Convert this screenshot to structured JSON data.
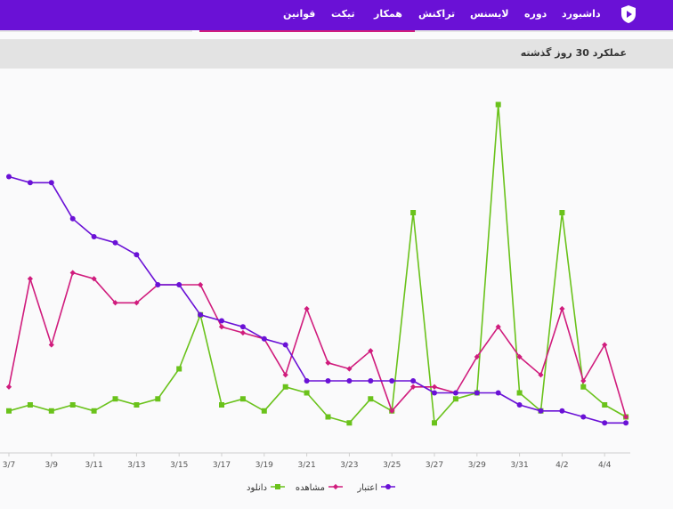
{
  "nav": {
    "items": [
      "داشبورد",
      "دوره",
      "لایسنس",
      "تراکنش",
      "همکار",
      "تیکت",
      "قوانین"
    ]
  },
  "section": {
    "title": "عملکرد 30 روز گذشته"
  },
  "colors": {
    "brand": "#6a11d6",
    "accent": "#d01c7d",
    "download": "#6ac21b",
    "view": "#d01c7d",
    "credit": "#6a11d6"
  },
  "chart_data": {
    "type": "line",
    "x": [
      "3/7",
      "3/8",
      "3/9",
      "3/10",
      "3/11",
      "3/12",
      "3/13",
      "3/14",
      "3/15",
      "3/16",
      "3/17",
      "3/18",
      "3/19",
      "3/20",
      "3/21",
      "3/22",
      "3/23",
      "3/24",
      "3/25",
      "3/26",
      "3/27",
      "3/28",
      "3/29",
      "3/30",
      "3/31",
      "4/1",
      "4/2",
      "4/3",
      "4/4",
      "4/5"
    ],
    "tick_labels": [
      "3/7",
      "3/9",
      "3/11",
      "3/13",
      "3/15",
      "3/17",
      "3/19",
      "3/21",
      "3/23",
      "3/25",
      "3/27",
      "3/29",
      "3/31",
      "4/2",
      "4/4"
    ],
    "series": [
      {
        "name": "اعتبار",
        "marker": "circle",
        "values": [
          60,
          59,
          59,
          53,
          50,
          49,
          47,
          42,
          42,
          37,
          36,
          35,
          33,
          32,
          26,
          26,
          26,
          26,
          26,
          26,
          24,
          24,
          24,
          24,
          22,
          21,
          21,
          20,
          19,
          19
        ]
      },
      {
        "name": "مشاهده",
        "marker": "diamond",
        "values": [
          25,
          43,
          32,
          44,
          43,
          39,
          39,
          42,
          42,
          42,
          35,
          34,
          33,
          27,
          38,
          29,
          28,
          31,
          21,
          25,
          25,
          24,
          30,
          35,
          30,
          27,
          38,
          26,
          32,
          20
        ]
      },
      {
        "name": "دانلود",
        "marker": "square",
        "values": [
          21,
          22,
          21,
          22,
          21,
          23,
          22,
          23,
          28,
          37,
          22,
          23,
          21,
          25,
          24,
          20,
          19,
          23,
          21,
          54,
          19,
          23,
          24,
          72,
          24,
          21,
          54,
          25,
          22,
          20
        ]
      }
    ],
    "legend_position": "bottom",
    "ylim": [
      14,
      78
    ]
  }
}
